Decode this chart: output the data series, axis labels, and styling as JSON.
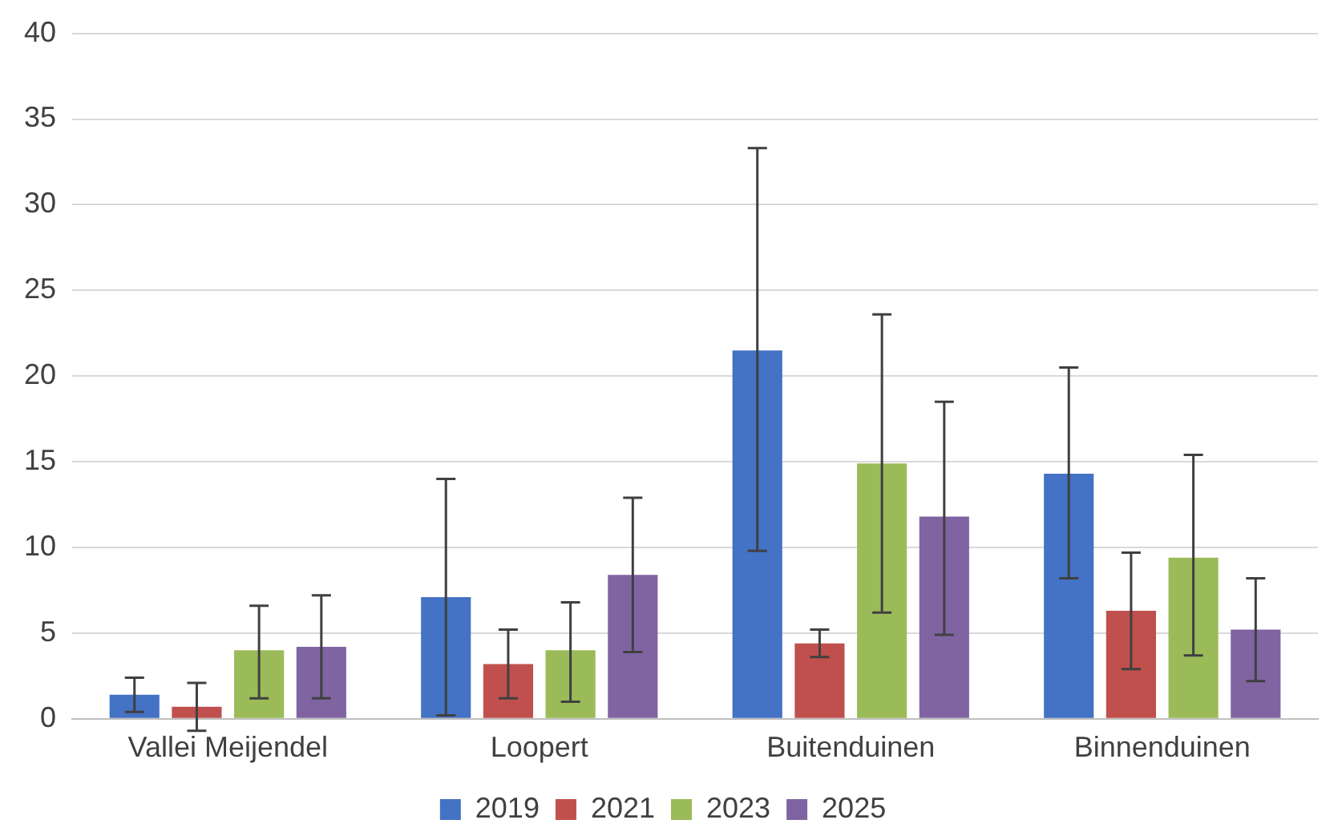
{
  "chart_data": {
    "type": "bar",
    "categories": [
      "Vallei Meijendel",
      "Loopert",
      "Buitenduinen",
      "Binnenduinen"
    ],
    "series": [
      {
        "name": "2019",
        "color": "#4472c4",
        "values": [
          1.4,
          7.1,
          21.5,
          14.3
        ],
        "errors": [
          [
            0.4,
            2.4
          ],
          [
            0.2,
            14.0
          ],
          [
            9.8,
            33.3
          ],
          [
            8.2,
            20.5
          ]
        ]
      },
      {
        "name": "2021",
        "color": "#c0504d",
        "values": [
          0.7,
          3.2,
          4.4,
          6.3
        ],
        "errors": [
          [
            -0.7,
            2.1
          ],
          [
            1.2,
            5.2
          ],
          [
            3.6,
            5.2
          ],
          [
            2.9,
            9.7
          ]
        ]
      },
      {
        "name": "2023",
        "color": "#9bbb59",
        "values": [
          4.0,
          4.0,
          14.9,
          9.4
        ],
        "errors": [
          [
            1.2,
            6.6
          ],
          [
            1.0,
            6.8
          ],
          [
            6.2,
            23.6
          ],
          [
            3.7,
            15.4
          ]
        ]
      },
      {
        "name": "2025",
        "color": "#8064a2",
        "values": [
          4.2,
          8.4,
          11.8,
          5.2
        ],
        "errors": [
          [
            1.2,
            7.2
          ],
          [
            3.9,
            12.9
          ],
          [
            4.9,
            18.5
          ],
          [
            2.2,
            8.2
          ]
        ]
      }
    ],
    "ylim": [
      0,
      40
    ],
    "yticks": [
      0,
      5,
      10,
      15,
      20,
      25,
      30,
      35,
      40
    ],
    "grid": "y",
    "legend": "bottom"
  }
}
